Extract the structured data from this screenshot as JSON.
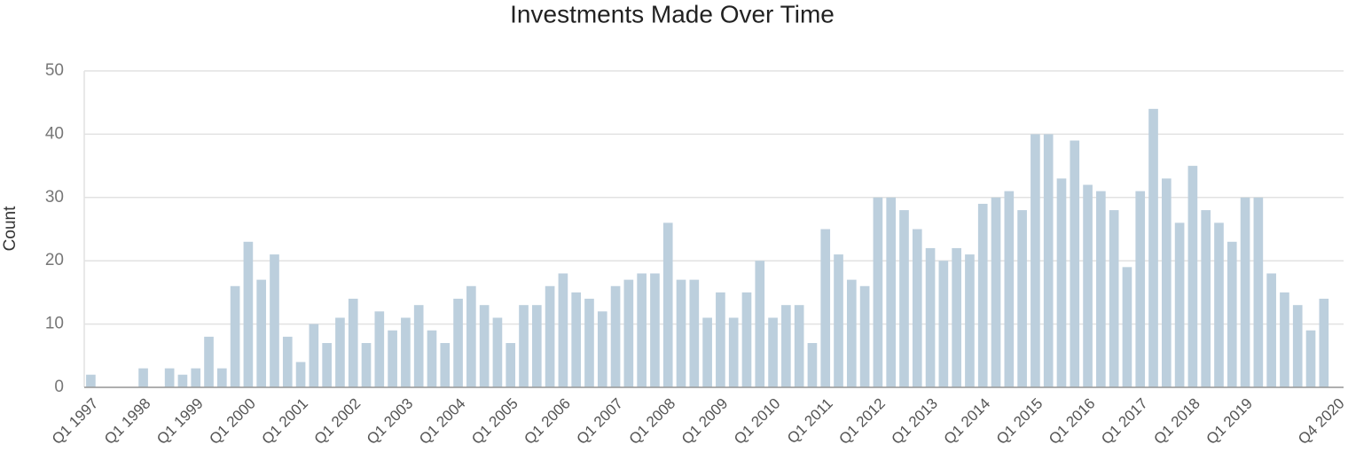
{
  "chart_data": {
    "type": "bar",
    "title": "Investments Made Over Time",
    "y_label": "Count",
    "categories": [
      "Q1 1997",
      null,
      null,
      null,
      "Q1 1998",
      null,
      null,
      null,
      "Q1 1999",
      null,
      null,
      null,
      "Q1 2000",
      null,
      null,
      null,
      "Q1 2001",
      null,
      null,
      null,
      "Q1 2002",
      null,
      null,
      null,
      "Q1 2003",
      null,
      null,
      null,
      "Q1 2004",
      null,
      null,
      null,
      "Q1 2005",
      null,
      null,
      null,
      "Q1 2006",
      null,
      null,
      null,
      "Q1 2007",
      null,
      null,
      null,
      "Q1 2008",
      null,
      null,
      null,
      "Q1 2009",
      null,
      null,
      null,
      "Q1 2010",
      null,
      null,
      null,
      "Q1 2011",
      null,
      null,
      null,
      "Q1 2012",
      null,
      null,
      null,
      "Q1 2013",
      null,
      null,
      null,
      "Q1 2014",
      null,
      null,
      null,
      "Q1 2015",
      null,
      null,
      null,
      "Q1 2016",
      null,
      null,
      null,
      "Q1 2017",
      null,
      null,
      null,
      "Q1 2018",
      null,
      null,
      null,
      "Q1 2019",
      null,
      null,
      null,
      null,
      null,
      null,
      "Q4 2020"
    ],
    "values": [
      2,
      0,
      0,
      0,
      3,
      0,
      3,
      2,
      3,
      8,
      3,
      16,
      23,
      17,
      21,
      8,
      4,
      10,
      7,
      11,
      14,
      7,
      12,
      9,
      11,
      13,
      9,
      7,
      14,
      16,
      13,
      11,
      7,
      13,
      13,
      16,
      18,
      15,
      14,
      12,
      16,
      17,
      18,
      18,
      26,
      17,
      17,
      11,
      15,
      11,
      15,
      20,
      11,
      13,
      13,
      7,
      25,
      21,
      17,
      16,
      30,
      30,
      28,
      25,
      22,
      20,
      22,
      21,
      29,
      30,
      31,
      28,
      40,
      40,
      33,
      39,
      32,
      31,
      28,
      19,
      31,
      44,
      33,
      26,
      35,
      28,
      26,
      23,
      30,
      30,
      18,
      15,
      13,
      9,
      14,
      0
    ],
    "color": "#bccfdd",
    "ylim": [
      0,
      50
    ],
    "yticks": [
      0,
      10,
      20,
      30,
      40,
      50
    ],
    "grid": true
  }
}
